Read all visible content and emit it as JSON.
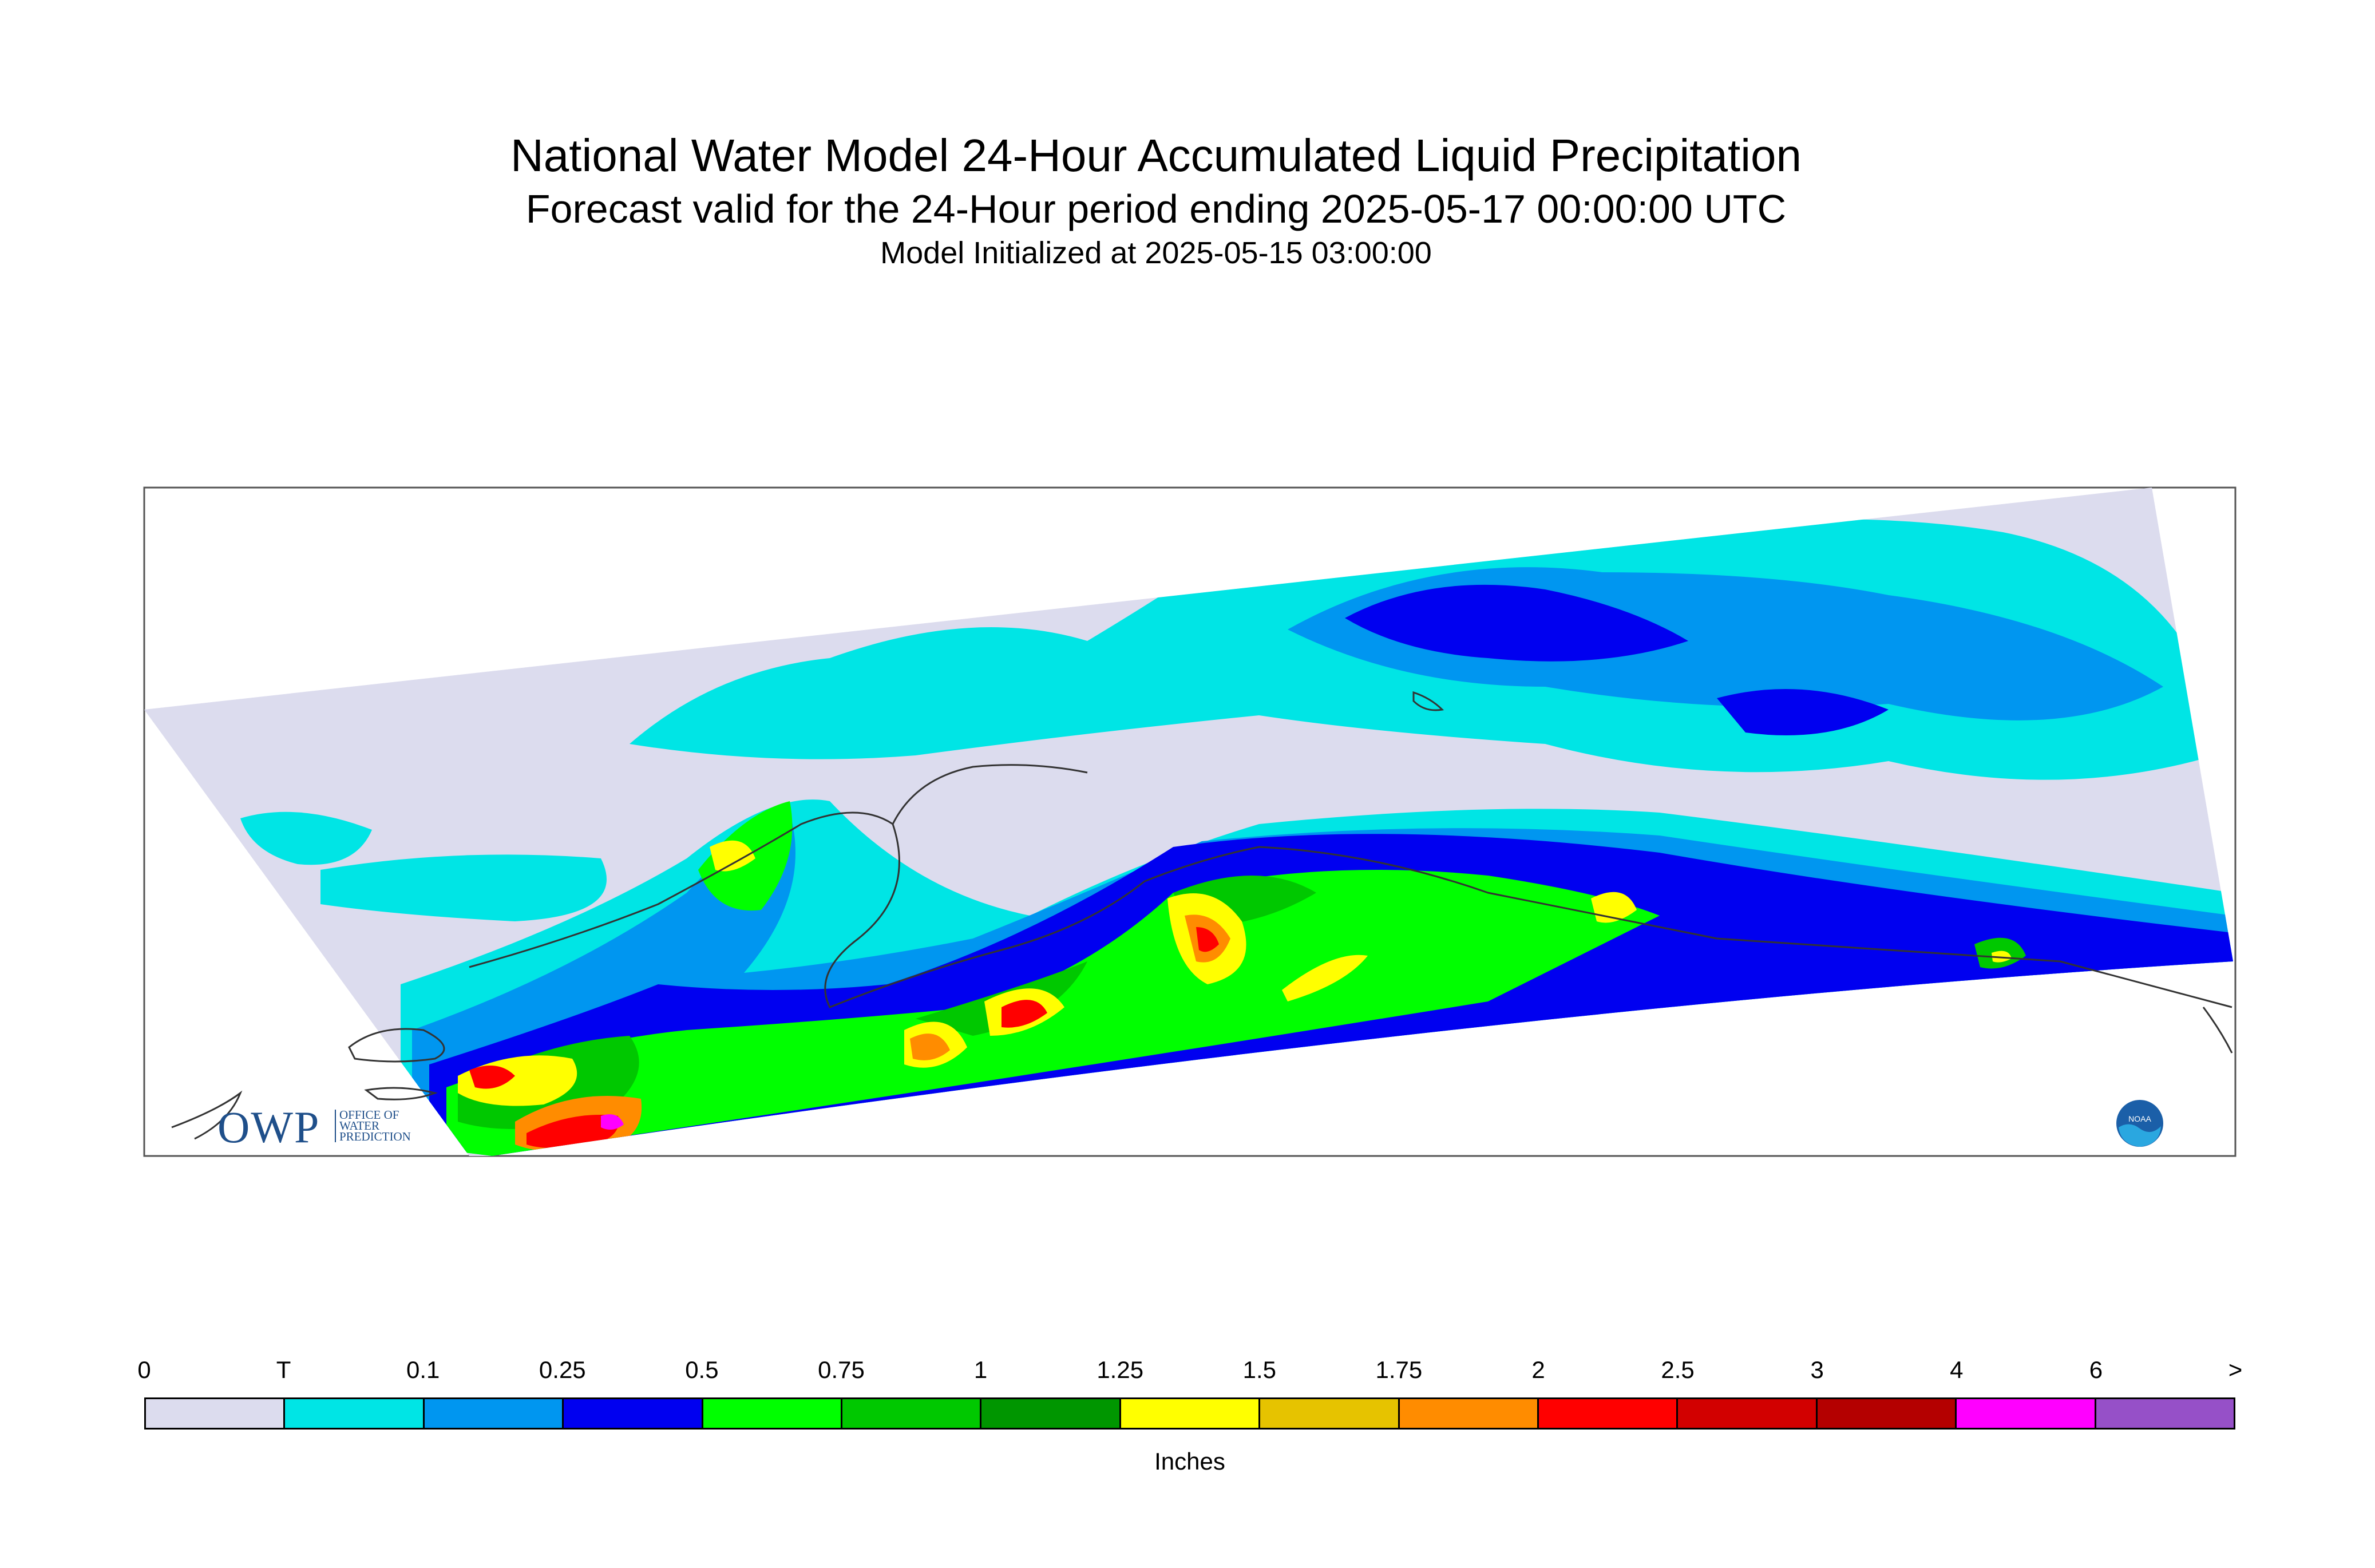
{
  "title": "National Water Model 24-Hour Accumulated Liquid Precipitation",
  "subtitle": "Forecast valid for the 24-Hour period ending 2025-05-17 00:00:00 UTC",
  "init_line": "Model Initialized at 2025-05-15 03:00:00",
  "logos": {
    "owp": "OWP",
    "owp_small": [
      "OFFICE OF",
      "WATER",
      "PREDICTION"
    ],
    "noaa": "NOAA"
  },
  "legend": {
    "units": "Inches",
    "tick_labels": [
      "0",
      "T",
      "0.1",
      "0.25",
      "0.5",
      "0.75",
      "1",
      "1.25",
      "1.5",
      "1.75",
      "2",
      "2.5",
      "3",
      "4",
      "6",
      ">"
    ],
    "colors": [
      "#dcdcee",
      "#00e5e5",
      "#0096f0",
      "#0000f0",
      "#00ff00",
      "#00c800",
      "#009600",
      "#ffff00",
      "#e6c300",
      "#ff8c00",
      "#ff0000",
      "#d20000",
      "#b40000",
      "#ff00ff",
      "#9650c8"
    ]
  },
  "map": {
    "region": "Alaska (southern)",
    "background_color": "#dcdcee",
    "coast_color": "#333333"
  }
}
